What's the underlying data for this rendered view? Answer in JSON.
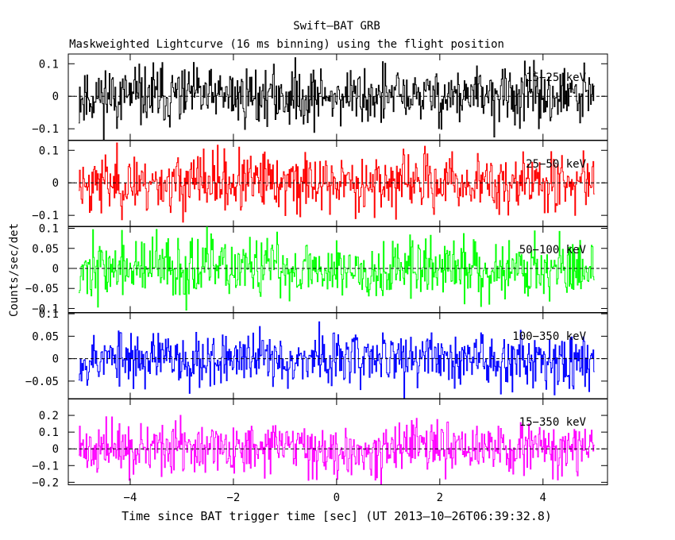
{
  "chart_data": {
    "type": "line",
    "title": "Swift–BAT GRB",
    "subtitle": "Maskweighted Lightcurve (16 ms binning) using the flight position",
    "xlabel": "Time since BAT trigger time [sec] (UT 2013–10–26T06:39:32.8)",
    "ylabel": "Counts/sec/det",
    "xlim": [
      -5.2,
      5.25
    ],
    "x_range": [
      -5.0,
      5.0
    ],
    "bin_width_s": 0.016,
    "x_ticks": [
      -4,
      -2,
      0,
      2,
      4
    ],
    "x_tick_labels": [
      "−4",
      "−2",
      "0",
      "2",
      "4"
    ],
    "panels": [
      {
        "label": "15−25 keV",
        "color": "#000000",
        "ylim": [
          -0.135,
          0.13
        ],
        "y_ticks": [
          -0.1,
          0,
          0.1
        ],
        "y_tick_labels": [
          "−0.1",
          "0",
          "0.1"
        ],
        "noise_sigma": 0.045,
        "seed": 11
      },
      {
        "label": "25−50 keV",
        "color": "#ff0000",
        "ylim": [
          -0.135,
          0.13
        ],
        "y_ticks": [
          -0.1,
          0,
          0.1
        ],
        "y_tick_labels": [
          "−0.1",
          "0",
          "0.1"
        ],
        "noise_sigma": 0.045,
        "seed": 23
      },
      {
        "label": "50−100 keV",
        "color": "#00ff00",
        "ylim": [
          -0.11,
          0.105
        ],
        "y_ticks": [
          -0.1,
          -0.05,
          0,
          0.05,
          0.1
        ],
        "y_tick_labels": [
          "−0.1",
          "−0.05",
          "0",
          "0.05",
          "0.1"
        ],
        "noise_sigma": 0.038,
        "seed": 37
      },
      {
        "label": "100−350 keV",
        "color": "#0000ff",
        "ylim": [
          -0.09,
          0.102
        ],
        "y_ticks": [
          -0.05,
          0,
          0.05,
          0.1
        ],
        "y_tick_labels": [
          "−0.05",
          "0",
          "0.05",
          "0.1"
        ],
        "noise_sigma": 0.03,
        "seed": 53
      },
      {
        "label": "15−350 keV",
        "color": "#ff00ff",
        "ylim": [
          -0.215,
          0.3
        ],
        "y_ticks": [
          -0.2,
          -0.1,
          0,
          0.1,
          0.2
        ],
        "y_tick_labels": [
          "−0.2",
          "−0.1",
          "0",
          "0.1",
          "0.2"
        ],
        "noise_sigma": 0.075,
        "seed": 71
      }
    ]
  }
}
